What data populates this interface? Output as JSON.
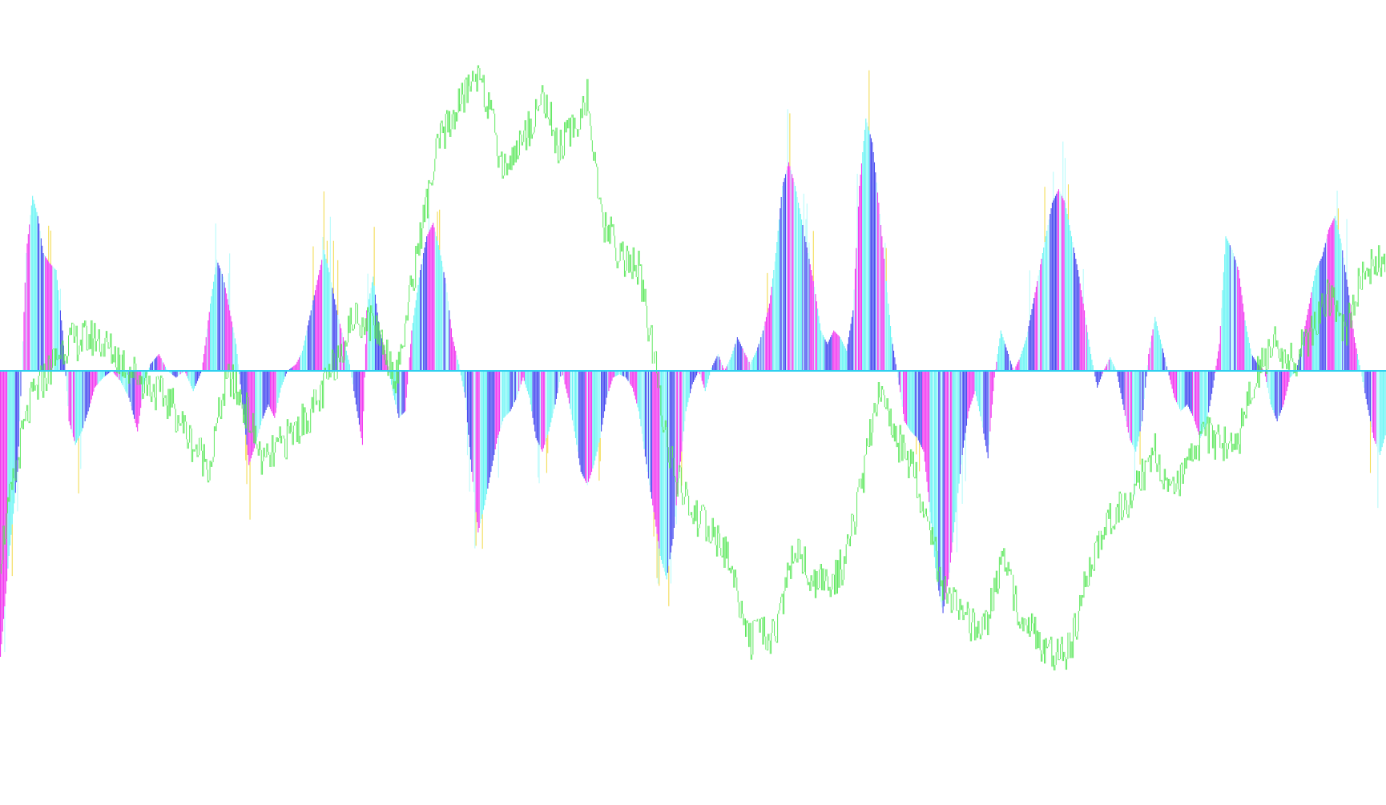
{
  "chart_data": {
    "type": "bar",
    "title": "",
    "xlabel": "",
    "ylabel": "",
    "grid": false,
    "legend": "none",
    "ylim": [
      -1.0,
      1.0
    ],
    "zero_line": 0,
    "colors": {
      "cyan": "#6ff5f5",
      "light_cyan": "#b8fbfb",
      "magenta": "#f23cf0",
      "blue": "#4a4ef0",
      "yellow": "#f3dc55",
      "green": "#5fe85f",
      "axis": "#2fd0f0"
    },
    "histogram_envelope": [
      [
        0,
        -0.85
      ],
      [
        8,
        -0.55
      ],
      [
        16,
        -0.3
      ],
      [
        20,
        0.0
      ],
      [
        24,
        0.35
      ],
      [
        30,
        0.52
      ],
      [
        35,
        0.46
      ],
      [
        40,
        0.35
      ],
      [
        46,
        0.32
      ],
      [
        52,
        0.3
      ],
      [
        58,
        0.12
      ],
      [
        64,
        -0.15
      ],
      [
        70,
        -0.22
      ],
      [
        76,
        -0.18
      ],
      [
        82,
        -0.12
      ],
      [
        88,
        -0.05
      ],
      [
        96,
        -0.02
      ],
      [
        104,
        0.0
      ],
      [
        112,
        -0.03
      ],
      [
        120,
        -0.08
      ],
      [
        128,
        -0.18
      ],
      [
        134,
        -0.04
      ],
      [
        140,
        0.02
      ],
      [
        148,
        0.05
      ],
      [
        156,
        0.0
      ],
      [
        164,
        -0.02
      ],
      [
        172,
        0.0
      ],
      [
        180,
        -0.06
      ],
      [
        188,
        0.0
      ],
      [
        196,
        0.2
      ],
      [
        202,
        0.33
      ],
      [
        208,
        0.28
      ],
      [
        214,
        0.18
      ],
      [
        220,
        0.08
      ],
      [
        226,
        -0.1
      ],
      [
        232,
        -0.28
      ],
      [
        238,
        -0.22
      ],
      [
        244,
        -0.15
      ],
      [
        250,
        -0.1
      ],
      [
        256,
        -0.14
      ],
      [
        262,
        -0.05
      ],
      [
        268,
        0.0
      ],
      [
        276,
        0.02
      ],
      [
        282,
        0.06
      ],
      [
        288,
        0.15
      ],
      [
        296,
        0.27
      ],
      [
        302,
        0.36
      ],
      [
        308,
        0.28
      ],
      [
        314,
        0.18
      ],
      [
        320,
        0.1
      ],
      [
        326,
        0.02
      ],
      [
        332,
        -0.1
      ],
      [
        338,
        -0.22
      ],
      [
        342,
        0.18
      ],
      [
        348,
        0.28
      ],
      [
        354,
        0.12
      ],
      [
        360,
        0.05
      ],
      [
        366,
        -0.06
      ],
      [
        372,
        -0.14
      ],
      [
        378,
        -0.12
      ],
      [
        384,
        0.12
      ],
      [
        392,
        0.3
      ],
      [
        398,
        0.4
      ],
      [
        404,
        0.44
      ],
      [
        410,
        0.36
      ],
      [
        416,
        0.26
      ],
      [
        422,
        0.1
      ],
      [
        428,
        0.02
      ],
      [
        434,
        -0.08
      ],
      [
        440,
        -0.3
      ],
      [
        446,
        -0.48
      ],
      [
        452,
        -0.4
      ],
      [
        458,
        -0.3
      ],
      [
        464,
        -0.2
      ],
      [
        470,
        -0.14
      ],
      [
        476,
        -0.12
      ],
      [
        482,
        -0.08
      ],
      [
        488,
        -0.02
      ],
      [
        494,
        -0.08
      ],
      [
        500,
        -0.2
      ],
      [
        506,
        -0.24
      ],
      [
        512,
        -0.18
      ],
      [
        518,
        -0.1
      ],
      [
        524,
        0.0
      ],
      [
        530,
        -0.08
      ],
      [
        536,
        -0.18
      ],
      [
        542,
        -0.3
      ],
      [
        548,
        -0.34
      ],
      [
        554,
        -0.28
      ],
      [
        560,
        -0.2
      ],
      [
        566,
        -0.08
      ],
      [
        572,
        -0.02
      ],
      [
        578,
        -0.01
      ],
      [
        584,
        -0.02
      ],
      [
        590,
        -0.05
      ],
      [
        596,
        -0.12
      ],
      [
        604,
        -0.3
      ],
      [
        610,
        -0.42
      ],
      [
        616,
        -0.55
      ],
      [
        622,
        -0.62
      ],
      [
        628,
        -0.5
      ],
      [
        634,
        -0.3
      ],
      [
        640,
        -0.12
      ],
      [
        646,
        -0.04
      ],
      [
        652,
        0.0
      ],
      [
        658,
        -0.06
      ],
      [
        664,
        0.01
      ],
      [
        670,
        0.05
      ],
      [
        676,
        0.0
      ],
      [
        682,
        0.04
      ],
      [
        688,
        0.1
      ],
      [
        694,
        0.06
      ],
      [
        700,
        0.02
      ],
      [
        706,
        0.06
      ],
      [
        712,
        0.12
      ],
      [
        718,
        0.2
      ],
      [
        724,
        0.35
      ],
      [
        730,
        0.55
      ],
      [
        736,
        0.62
      ],
      [
        742,
        0.55
      ],
      [
        748,
        0.45
      ],
      [
        754,
        0.35
      ],
      [
        760,
        0.25
      ],
      [
        766,
        0.12
      ],
      [
        772,
        0.08
      ],
      [
        778,
        0.12
      ],
      [
        784,
        0.1
      ],
      [
        790,
        0.06
      ],
      [
        796,
        0.18
      ],
      [
        802,
        0.55
      ],
      [
        808,
        0.75
      ],
      [
        814,
        0.68
      ],
      [
        820,
        0.5
      ],
      [
        826,
        0.3
      ],
      [
        832,
        0.1
      ],
      [
        838,
        -0.02
      ],
      [
        844,
        -0.15
      ],
      [
        850,
        -0.18
      ],
      [
        856,
        -0.2
      ],
      [
        862,
        -0.24
      ],
      [
        868,
        -0.42
      ],
      [
        874,
        -0.62
      ],
      [
        880,
        -0.72
      ],
      [
        886,
        -0.6
      ],
      [
        892,
        -0.42
      ],
      [
        898,
        -0.25
      ],
      [
        904,
        -0.12
      ],
      [
        910,
        -0.06
      ],
      [
        916,
        -0.15
      ],
      [
        922,
        -0.26
      ],
      [
        928,
        -0.02
      ],
      [
        934,
        0.12
      ],
      [
        940,
        0.06
      ],
      [
        946,
        0.0
      ],
      [
        952,
        0.04
      ],
      [
        958,
        0.1
      ],
      [
        964,
        0.2
      ],
      [
        970,
        0.3
      ],
      [
        976,
        0.4
      ],
      [
        982,
        0.5
      ],
      [
        988,
        0.54
      ],
      [
        994,
        0.5
      ],
      [
        1000,
        0.4
      ],
      [
        1006,
        0.3
      ],
      [
        1012,
        0.18
      ],
      [
        1018,
        0.05
      ],
      [
        1024,
        -0.05
      ],
      [
        1030,
        0.0
      ],
      [
        1036,
        0.04
      ],
      [
        1042,
        0.0
      ],
      [
        1048,
        -0.1
      ],
      [
        1054,
        -0.2
      ],
      [
        1060,
        -0.24
      ],
      [
        1066,
        -0.15
      ],
      [
        1072,
        0.05
      ],
      [
        1078,
        0.16
      ],
      [
        1084,
        0.08
      ],
      [
        1090,
        0.0
      ],
      [
        1096,
        -0.08
      ],
      [
        1102,
        -0.12
      ],
      [
        1108,
        -0.1
      ],
      [
        1114,
        -0.14
      ],
      [
        1120,
        -0.2
      ],
      [
        1126,
        -0.16
      ],
      [
        1132,
        -0.05
      ],
      [
        1138,
        0.08
      ],
      [
        1144,
        0.4
      ],
      [
        1150,
        0.36
      ],
      [
        1156,
        0.3
      ],
      [
        1162,
        0.15
      ],
      [
        1168,
        0.05
      ],
      [
        1174,
        0.02
      ],
      [
        1180,
        0.0
      ],
      [
        1186,
        -0.1
      ],
      [
        1192,
        -0.15
      ],
      [
        1198,
        -0.1
      ],
      [
        1204,
        -0.02
      ],
      [
        1210,
        0.0
      ],
      [
        1216,
        0.1
      ],
      [
        1222,
        0.2
      ],
      [
        1228,
        0.3
      ],
      [
        1234,
        0.34
      ],
      [
        1240,
        0.42
      ],
      [
        1246,
        0.46
      ],
      [
        1252,
        0.38
      ],
      [
        1258,
        0.25
      ],
      [
        1264,
        0.1
      ],
      [
        1270,
        0.0
      ],
      [
        1276,
        -0.1
      ],
      [
        1282,
        -0.2
      ],
      [
        1288,
        -0.25
      ],
      [
        1294,
        -0.18
      ]
    ],
    "price_line": [
      [
        0,
        -0.55
      ],
      [
        20,
        -0.2
      ],
      [
        30,
        -0.08
      ],
      [
        60,
        0.08
      ],
      [
        90,
        0.1
      ],
      [
        110,
        0.04
      ],
      [
        130,
        -0.02
      ],
      [
        160,
        -0.1
      ],
      [
        180,
        -0.22
      ],
      [
        196,
        -0.28
      ],
      [
        206,
        -0.1
      ],
      [
        214,
        -0.02
      ],
      [
        230,
        -0.12
      ],
      [
        246,
        -0.28
      ],
      [
        262,
        -0.22
      ],
      [
        280,
        -0.16
      ],
      [
        296,
        -0.1
      ],
      [
        312,
        0.02
      ],
      [
        330,
        0.16
      ],
      [
        350,
        0.14
      ],
      [
        370,
        -0.02
      ],
      [
        392,
        0.4
      ],
      [
        410,
        0.68
      ],
      [
        430,
        0.8
      ],
      [
        448,
        0.9
      ],
      [
        460,
        0.72
      ],
      [
        470,
        0.6
      ],
      [
        490,
        0.7
      ],
      [
        508,
        0.82
      ],
      [
        520,
        0.66
      ],
      [
        536,
        0.72
      ],
      [
        548,
        0.82
      ],
      [
        560,
        0.46
      ],
      [
        580,
        0.34
      ],
      [
        596,
        0.3
      ],
      [
        610,
        0.04
      ],
      [
        628,
        -0.3
      ],
      [
        646,
        -0.42
      ],
      [
        664,
        -0.48
      ],
      [
        680,
        -0.56
      ],
      [
        700,
        -0.8
      ],
      [
        724,
        -0.78
      ],
      [
        742,
        -0.52
      ],
      [
        758,
        -0.62
      ],
      [
        774,
        -0.64
      ],
      [
        790,
        -0.56
      ],
      [
        808,
        -0.28
      ],
      [
        820,
        -0.04
      ],
      [
        836,
        -0.2
      ],
      [
        852,
        -0.28
      ],
      [
        868,
        -0.48
      ],
      [
        884,
        -0.68
      ],
      [
        900,
        -0.74
      ],
      [
        918,
        -0.78
      ],
      [
        936,
        -0.56
      ],
      [
        950,
        -0.7
      ],
      [
        966,
        -0.78
      ],
      [
        984,
        -0.86
      ],
      [
        1000,
        -0.82
      ],
      [
        1016,
        -0.6
      ],
      [
        1034,
        -0.44
      ],
      [
        1048,
        -0.4
      ],
      [
        1062,
        -0.34
      ],
      [
        1078,
        -0.24
      ],
      [
        1096,
        -0.36
      ],
      [
        1108,
        -0.3
      ],
      [
        1124,
        -0.18
      ],
      [
        1140,
        -0.22
      ],
      [
        1156,
        -0.2
      ],
      [
        1172,
        -0.02
      ],
      [
        1190,
        0.08
      ],
      [
        1206,
        0.02
      ],
      [
        1222,
        0.1
      ],
      [
        1240,
        0.22
      ],
      [
        1256,
        0.12
      ],
      [
        1270,
        0.28
      ],
      [
        1294,
        0.34
      ]
    ]
  }
}
